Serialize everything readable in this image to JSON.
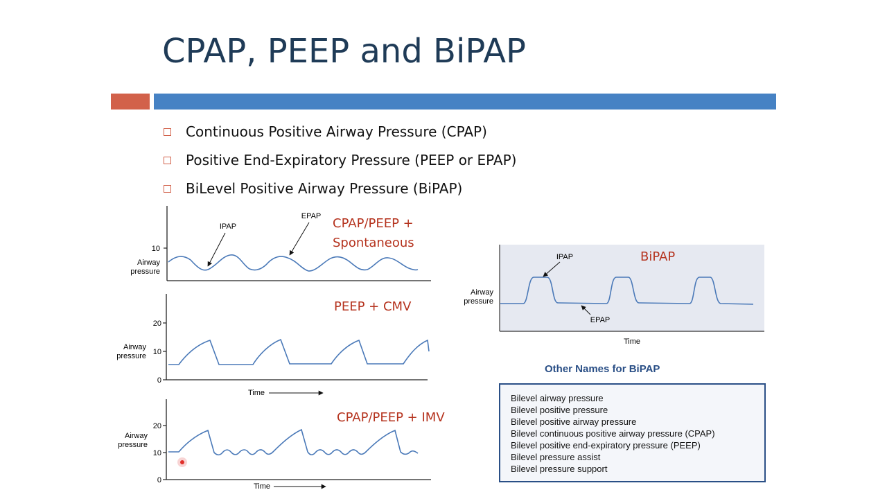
{
  "slide": {
    "title": "CPAP, PEEP and BiPAP",
    "accent_colors": {
      "orange": "#d2614a",
      "blue": "#4682c4",
      "chart_label": "#b5331e",
      "waveform": "#4a79b8"
    },
    "bullets": [
      "Continuous Positive Airway Pressure (CPAP)",
      "Positive End-Expiratory Pressure (PEEP or EPAP)",
      "BiLevel Positive Airway Pressure (BiPAP)"
    ]
  },
  "graphs": {
    "graph1": {
      "label_line1": "CPAP/PEEP +",
      "label_line2": "Spontaneous",
      "ylabel_line1": "Airway",
      "ylabel_line2": "pressure",
      "tick_10": "10",
      "annot_ipap": "IPAP",
      "annot_epap": "EPAP"
    },
    "graph2": {
      "label": "PEEP + CMV",
      "ylabel_line1": "Airway",
      "ylabel_line2": "pressure",
      "tick_20": "20",
      "tick_10": "10",
      "tick_0": "0",
      "xlabel": "Time"
    },
    "graph3": {
      "label": "CPAP/PEEP + IMV",
      "ylabel_line1": "Airway",
      "ylabel_line2": "pressure",
      "tick_20": "20",
      "tick_10": "10",
      "tick_0": "0",
      "xlabel": "Time"
    },
    "bipap": {
      "label": "BiPAP",
      "ylabel_line1": "Airway",
      "ylabel_line2": "pressure",
      "annot_ipap": "IPAP",
      "annot_epap": "EPAP",
      "xlabel": "Time"
    }
  },
  "other_names": {
    "heading": "Other Names for BiPAP",
    "items": [
      "Bilevel airway pressure",
      "Bilevel positive pressure",
      "Bilevel positive airway pressure",
      "Bilevel continuous positive airway pressure (CPAP)",
      "Bilevel positive end-expiratory pressure (PEEP)",
      "Bilevel pressure assist",
      "Bilevel pressure support"
    ]
  }
}
